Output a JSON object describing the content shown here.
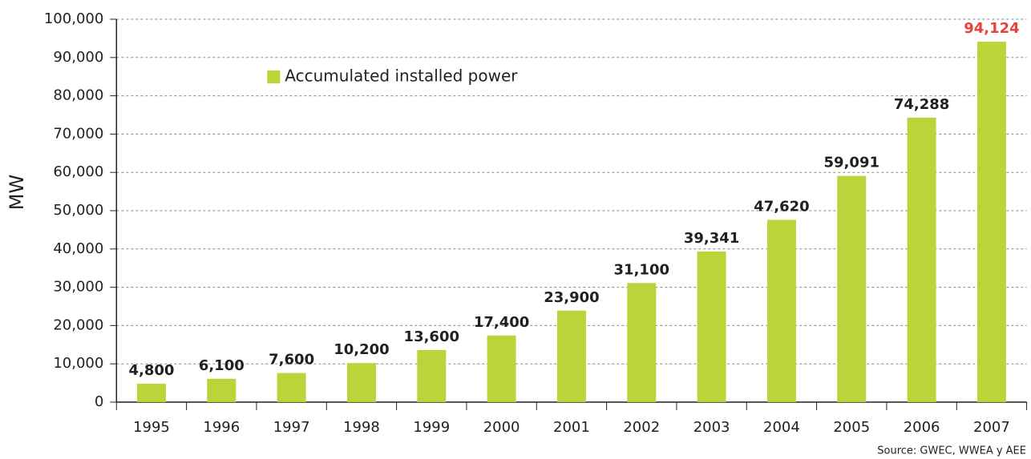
{
  "chart_data": {
    "type": "bar",
    "y_label": "MW",
    "source": "Source: GWEC, WWEA y AEE",
    "categories": [
      "1995",
      "1996",
      "1997",
      "1998",
      "1999",
      "2000",
      "2001",
      "2002",
      "2003",
      "2004",
      "2005",
      "2006",
      "2007"
    ],
    "series": [
      {
        "name": "Accumulated installed power",
        "color": "#bcd43a",
        "values": [
          4800,
          6100,
          7600,
          10200,
          13600,
          17400,
          23900,
          31100,
          39341,
          47620,
          59091,
          74288,
          94124
        ],
        "value_labels": [
          "4,800",
          "6,100",
          "7,600",
          "10,200",
          "13,600",
          "17,400",
          "23,900",
          "31,100",
          "39,341",
          "47,620",
          "59,091",
          "74,288",
          "94,124"
        ],
        "value_label_colors": [
          "#231f20",
          "#231f20",
          "#231f20",
          "#231f20",
          "#231f20",
          "#231f20",
          "#231f20",
          "#231f20",
          "#231f20",
          "#231f20",
          "#231f20",
          "#231f20",
          "#e8413c"
        ]
      }
    ],
    "ylim": [
      0,
      100000
    ],
    "yticks": [
      0,
      {
        "value": 10000,
        "label": "10,000"
      },
      {
        "value": 20000,
        "label": "20,000"
      },
      {
        "value": 30000,
        "label": "30,000"
      },
      {
        "value": 40000,
        "label": "40,000"
      },
      {
        "value": 50000,
        "label": "50,000"
      },
      {
        "value": 60000,
        "label": "60,000"
      },
      {
        "value": 70000,
        "label": "70,000"
      },
      {
        "value": 80000,
        "label": "80,000"
      },
      {
        "value": 90000,
        "label": "90,000"
      },
      {
        "value": 100000,
        "label": "100,000"
      }
    ],
    "grid": true,
    "legend": "top-left"
  }
}
